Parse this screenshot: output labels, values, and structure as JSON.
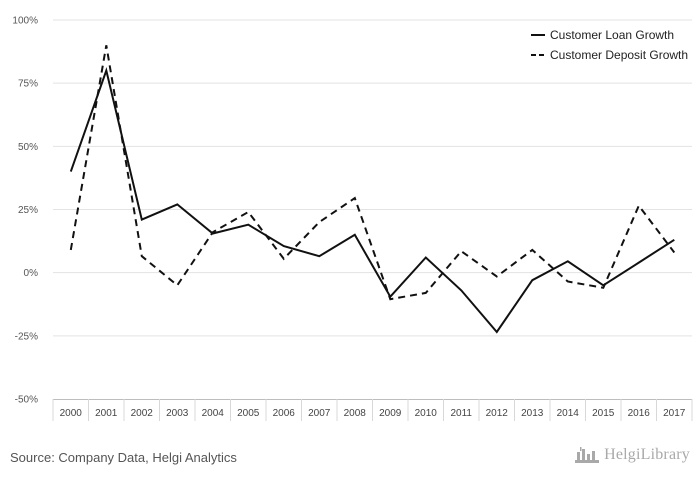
{
  "chart_data": {
    "type": "line",
    "title": "",
    "xlabel": "",
    "ylabel": "",
    "categories": [
      "2000",
      "2001",
      "2002",
      "2003",
      "2004",
      "2005",
      "2006",
      "2007",
      "2008",
      "2009",
      "2010",
      "2011",
      "2012",
      "2013",
      "2014",
      "2015",
      "2016",
      "2017"
    ],
    "ylim": [
      -50,
      100
    ],
    "yticks": [
      100,
      75,
      50,
      25,
      0,
      -25,
      -50
    ],
    "ytick_labels": [
      "100%",
      "75%",
      "50%",
      "25%",
      "0%",
      "-25%",
      "-50%"
    ],
    "grid": "horizontal",
    "legend_position": "top-right",
    "series": [
      {
        "name": "Customer Loan Growth",
        "line_style": "solid",
        "color": "#111111",
        "values": [
          40,
          80,
          21,
          27,
          15.5,
          19,
          10.5,
          6.5,
          15,
          -9.5,
          6,
          -7,
          -23.5,
          -3,
          4.5,
          -5,
          4,
          13
        ]
      },
      {
        "name": "Customer Deposit Growth",
        "line_style": "dashed",
        "color": "#111111",
        "values": [
          9,
          90,
          6.5,
          -5,
          16,
          24,
          5.5,
          20,
          29.5,
          -10.5,
          -8,
          8.5,
          -1.5,
          9,
          -3.5,
          -6,
          26.5,
          8
        ]
      }
    ]
  },
  "footer": {
    "source": "Source: Company Data, Helgi Analytics",
    "logo_text": "HelgiLibrary"
  }
}
